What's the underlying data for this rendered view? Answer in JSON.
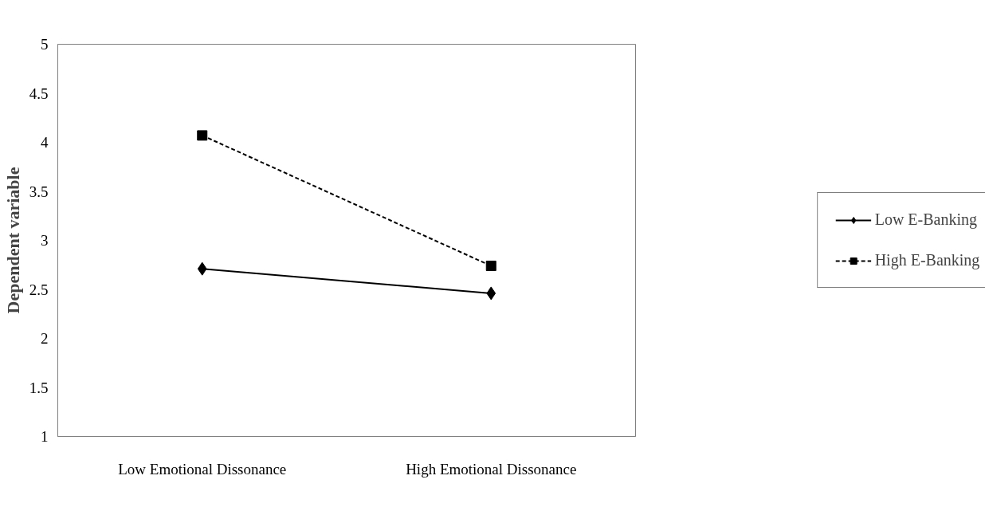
{
  "chart_data": {
    "type": "line",
    "ylabel": "Dependent variable",
    "categories": [
      "Low Emotional Dissonance",
      "High Emotional Dissonance"
    ],
    "series": [
      {
        "name": "Low E-Banking",
        "color": "#000000",
        "values": [
          2.71,
          2.46
        ],
        "marker": "diamond",
        "line_style": "solid"
      },
      {
        "name": "High E-Banking",
        "color": "#000000",
        "values": [
          4.07,
          2.74
        ],
        "marker": "square",
        "line_style": "dashed"
      }
    ],
    "ylim": [
      1,
      5
    ],
    "yticks": [
      1,
      1.5,
      2,
      2.5,
      3,
      3.5,
      4,
      4.5,
      5
    ],
    "grid": false,
    "legend": "right"
  }
}
